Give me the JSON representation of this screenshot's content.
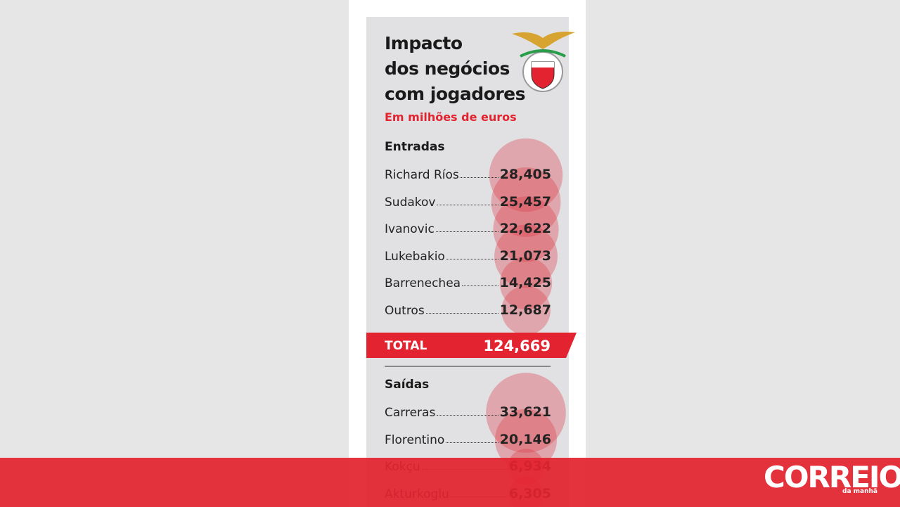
{
  "header": {
    "title_lines": [
      "Impacto",
      "dos negócios",
      "com jogadores"
    ],
    "subtitle": "Em milhões de euros"
  },
  "entradas": {
    "heading": "Entradas",
    "rows": [
      {
        "name": "Richard Ríos",
        "value": "28,405"
      },
      {
        "name": "Sudakov",
        "value": "25,457"
      },
      {
        "name": "Ivanovic",
        "value": "22,622"
      },
      {
        "name": "Lukebakio",
        "value": "21,073"
      },
      {
        "name": "Barrenechea",
        "value": "14,425"
      },
      {
        "name": "Outros",
        "value": "12,687"
      }
    ],
    "total_label": "TOTAL",
    "total_value": "124,669"
  },
  "saidas": {
    "heading": "Saídas",
    "rows": [
      {
        "name": "Carreras",
        "value": "33,621"
      },
      {
        "name": "Florentino",
        "value": "20,146"
      },
      {
        "name": "Kokçu",
        "value": "6,934"
      },
      {
        "name": "Akturkoglu",
        "value": "6,305"
      }
    ]
  },
  "banner": {
    "brand": "CORREIO",
    "tagline": "da manhã"
  }
}
